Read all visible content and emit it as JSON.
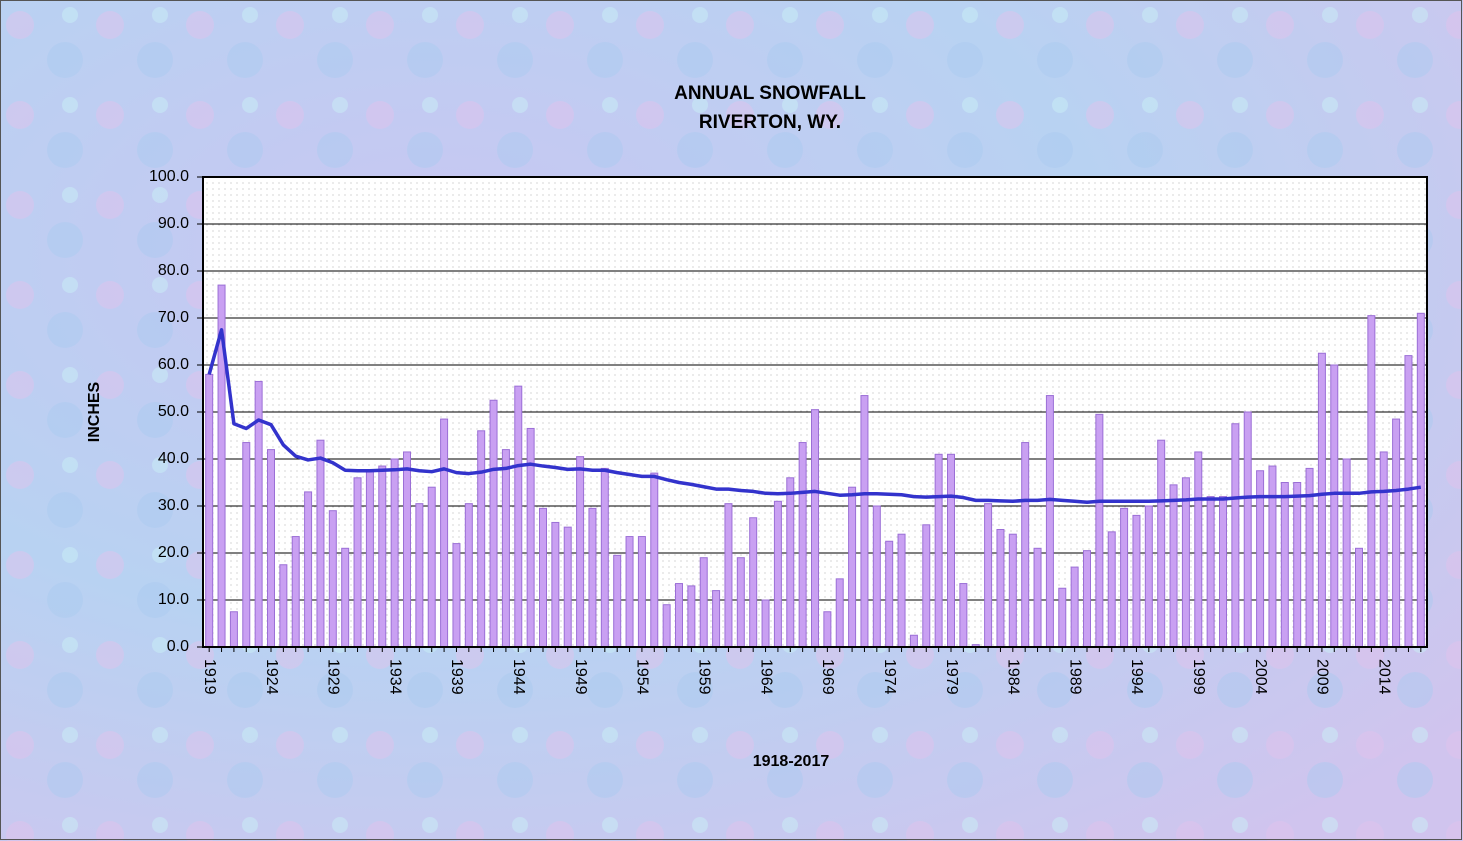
{
  "chart_data": {
    "type": "bar",
    "title": "ANNUAL SNOWFALL",
    "subtitle": "RIVERTON, WY.",
    "y_label": "INCHES",
    "x_label": "1918-2017",
    "categories": [
      "1919",
      null,
      null,
      null,
      null,
      "1924",
      null,
      null,
      null,
      null,
      "1929",
      null,
      null,
      null,
      null,
      "1934",
      null,
      null,
      null,
      null,
      "1939",
      null,
      null,
      null,
      null,
      "1944",
      null,
      null,
      null,
      null,
      "1949",
      null,
      null,
      null,
      null,
      "1954",
      null,
      null,
      null,
      null,
      "1959",
      null,
      null,
      null,
      null,
      "1964",
      null,
      null,
      null,
      null,
      "1969",
      null,
      null,
      null,
      null,
      "1974",
      null,
      null,
      null,
      null,
      "1979",
      null,
      null,
      null,
      null,
      "1984",
      null,
      null,
      null,
      null,
      "1989",
      null,
      null,
      null,
      null,
      "1994",
      null,
      null,
      null,
      null,
      "1999",
      null,
      null,
      null,
      null,
      "2004",
      null,
      null,
      null,
      null,
      "2009",
      null,
      null,
      null,
      null,
      "2014",
      null,
      null,
      null
    ],
    "series": [
      {
        "color": "#c9a0f2",
        "values": [
          58,
          77,
          7.5,
          43.5,
          56.5,
          42,
          17.5,
          23.5,
          33,
          44,
          29,
          21,
          36,
          37.5,
          38.5,
          40,
          41.5,
          30.5,
          34,
          48.5,
          22,
          30.5,
          46,
          52.5,
          42,
          55.5,
          46.5,
          29.5,
          26.5,
          25.5,
          40.5,
          29.5,
          38,
          19.5,
          23.5,
          23.5,
          37,
          9,
          13.5,
          13,
          19,
          12,
          30.5,
          19,
          27.5,
          10,
          31,
          36,
          43.5,
          50.5,
          7.5,
          14.5,
          34,
          53.5,
          30,
          22.5,
          24,
          2.5,
          26,
          41,
          41,
          13.5,
          0.5,
          30.5,
          25,
          24,
          43.5,
          21,
          53.5,
          12.5,
          17,
          20.5,
          49.5,
          24.5,
          29.5,
          28,
          30,
          44,
          34.5,
          36,
          41.5,
          32,
          32,
          47.5,
          50,
          37.5,
          38.5,
          35,
          35,
          38,
          62.5,
          60,
          40,
          21,
          70.5,
          41.5,
          48.5,
          62,
          71
        ]
      },
      {
        "type": "line",
        "color": "#3333cc",
        "values": [
          58,
          67.5,
          47.5,
          46.5,
          48.3,
          47.3,
          43,
          40.6,
          39.8,
          40.2,
          39.2,
          37.6,
          37.5,
          37.5,
          37.6,
          37.7,
          37.9,
          37.5,
          37.3,
          37.9,
          37.1,
          36.9,
          37.2,
          37.8,
          38,
          38.6,
          38.9,
          38.5,
          38.2,
          37.8,
          37.9,
          37.6,
          37.6,
          37.1,
          36.7,
          36.3,
          36.3,
          35.6,
          35,
          34.6,
          34.1,
          33.6,
          33.6,
          33.3,
          33.1,
          32.7,
          32.6,
          32.7,
          32.9,
          33.1,
          32.7,
          32.3,
          32.4,
          32.6,
          32.6,
          32.5,
          32.4,
          32,
          31.9,
          32,
          32.1,
          31.8,
          31.2,
          31.2,
          31.1,
          31,
          31.2,
          31.2,
          31.4,
          31.2,
          31,
          30.8,
          31,
          31,
          31,
          31,
          31,
          31.1,
          31.2,
          31.3,
          31.5,
          31.5,
          31.5,
          31.7,
          31.9,
          32,
          32,
          32,
          32.1,
          32.2,
          32.5,
          32.7,
          32.7,
          32.7,
          33,
          33.1,
          33.3,
          33.6,
          34
        ]
      }
    ],
    "ylim": [
      0,
      100
    ],
    "yticks": [
      {
        "value": 0,
        "label": "0.0"
      },
      {
        "value": 10,
        "label": "10.0"
      },
      {
        "value": 20,
        "label": "20.0"
      },
      {
        "value": 30,
        "label": "30.0"
      },
      {
        "value": 40,
        "label": "40.0"
      },
      {
        "value": 50,
        "label": "50.0"
      },
      {
        "value": 60,
        "label": "60.0"
      },
      {
        "value": 70,
        "label": "70.0"
      },
      {
        "value": 80,
        "label": "80.0"
      },
      {
        "value": 90,
        "label": "90.0"
      },
      {
        "value": 100,
        "label": "100.0"
      }
    ],
    "grid": true
  }
}
